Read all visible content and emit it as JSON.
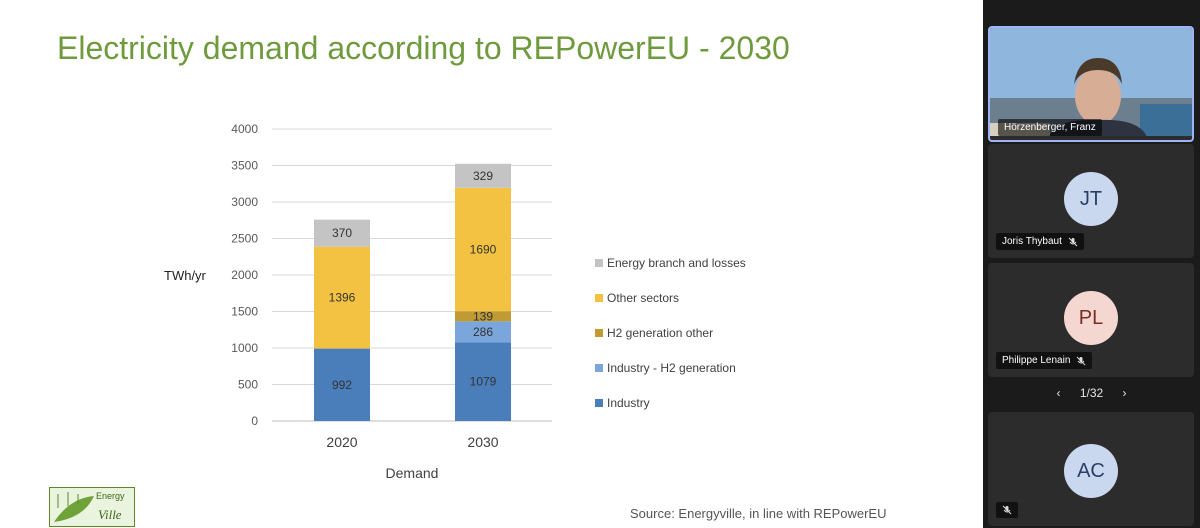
{
  "slide": {
    "title": "Electricity demand according to REPowerEU - 2030",
    "source": "Source: Energyville, in line with REPowerEU",
    "logo_text_1": "Energy",
    "logo_text_2": "Ville"
  },
  "chart_data": {
    "type": "bar",
    "stacked": true,
    "categories": [
      "2020",
      "2030"
    ],
    "ylabel": "TWh/yr",
    "xlabel": "Demand",
    "ylim": [
      0,
      4000
    ],
    "yticks": [
      0,
      500,
      1000,
      1500,
      2000,
      2500,
      3000,
      3500,
      4000
    ],
    "grid": true,
    "legend_position": "right",
    "series": [
      {
        "name": "Industry",
        "values": [
          992,
          1079
        ],
        "color": "#4a7ebb",
        "labels": [
          "992",
          "1079"
        ]
      },
      {
        "name": "Industry - H2 generation",
        "values": [
          0,
          286
        ],
        "color": "#7aa6dc",
        "labels": [
          "",
          "286"
        ]
      },
      {
        "name": "H2 generation other",
        "values": [
          0,
          139
        ],
        "color": "#c09a32",
        "labels": [
          "",
          "139"
        ]
      },
      {
        "name": "Other sectors",
        "values": [
          1396,
          1690
        ],
        "color": "#f4c242",
        "labels": [
          "1396",
          "1690"
        ]
      },
      {
        "name": "Energy branch and losses",
        "values": [
          370,
          329
        ],
        "color": "#c4c4c4",
        "labels": [
          "370",
          "329"
        ]
      }
    ],
    "legend_order": [
      "Energy branch and losses",
      "Other sectors",
      "H2 generation other",
      "Industry - H2 generation",
      "Industry"
    ]
  },
  "participants": [
    {
      "name": "Hörzenberger, Franz",
      "initials": "",
      "video": true
    },
    {
      "name": "Joris Thybaut",
      "initials": "JT",
      "avatar_bg": "#c9d8ef",
      "avatar_fg": "#2a3f66"
    },
    {
      "name": "Philippe Lenain",
      "initials": "PL",
      "avatar_bg": "#f5d7d2",
      "avatar_fg": "#7a2e24"
    },
    {
      "name": "",
      "initials": "AC",
      "avatar_bg": "#c9d8ef",
      "avatar_fg": "#2a3f66"
    }
  ],
  "pager": {
    "label": "1/32",
    "prev": "‹",
    "next": "›"
  }
}
